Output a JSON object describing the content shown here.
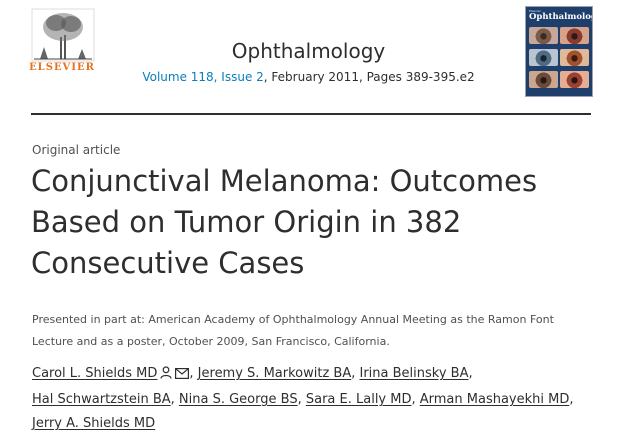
{
  "publisher": {
    "name": "ELSEVIER"
  },
  "journal": {
    "title": "Ophthalmology",
    "volume_issue": "Volume 118, Issue 2",
    "date_pages": ", February 2011, Pages 389-395.e2",
    "cover": {
      "title": "Ophthalmology",
      "tag": "Elsevier"
    }
  },
  "article": {
    "type": "Original article",
    "title": "Conjunctival Melanoma: Outcomes Based on Tumor Origin in 382 Consecutive Cases",
    "presented": "Presented in part at: American Academy of Ophthalmology Annual Meeting as the Ramon Font Lecture and as a poster, October 2009, San Francisco, California.",
    "authors": [
      "Carol L. Shields MD",
      "Jeremy S. Markowitz BA",
      "Irina Belinsky BA",
      "Hal Schwartzstein BA",
      "Nina S. George BS",
      "Sara E. Lally MD",
      "Arman Mashayekhi MD",
      "Jerry A. Shields MD"
    ]
  },
  "icons": {
    "first_author": [
      "person-icon",
      "mail-icon"
    ]
  },
  "colors": {
    "link": "#0c7dbb",
    "publisher_orange": "#e9711c",
    "text": "#2e2e2e",
    "cover_blue": "#1e3f6b"
  }
}
